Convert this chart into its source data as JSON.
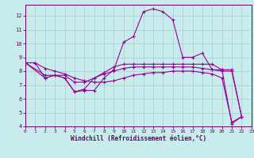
{
  "xlabel": "Windchill (Refroidissement éolien,°C)",
  "bg_color": "#c8ecec",
  "line_color": "#990099",
  "grid_color": "#aacccc",
  "text_color": "#660066",
  "xlim": [
    0,
    23
  ],
  "ylim": [
    4,
    12.8
  ],
  "xticks": [
    0,
    1,
    2,
    3,
    4,
    5,
    6,
    7,
    8,
    9,
    10,
    11,
    12,
    13,
    14,
    15,
    16,
    17,
    18,
    19,
    20,
    21,
    22,
    23
  ],
  "yticks": [
    4,
    5,
    6,
    7,
    8,
    9,
    10,
    11,
    12
  ],
  "curve1_x": [
    0,
    1,
    2,
    3,
    4,
    5,
    6,
    7,
    8,
    9,
    10,
    11,
    12,
    13,
    14,
    15,
    16,
    17,
    18,
    19,
    20,
    21,
    22
  ],
  "curve1_y": [
    8.6,
    8.6,
    7.5,
    7.7,
    7.5,
    6.5,
    6.6,
    6.6,
    7.5,
    8.1,
    10.1,
    10.5,
    12.3,
    12.5,
    12.3,
    11.7,
    9.0,
    9.0,
    9.3,
    8.1,
    8.1,
    4.2,
    4.7
  ],
  "curve2_x": [
    0,
    2,
    3,
    4,
    5,
    6,
    7,
    8,
    9,
    10,
    11,
    12,
    13,
    14,
    15,
    16,
    17,
    18,
    19,
    20,
    21,
    22
  ],
  "curve2_y": [
    8.6,
    7.5,
    7.7,
    7.5,
    6.5,
    6.7,
    7.5,
    7.9,
    8.3,
    8.5,
    8.5,
    8.5,
    8.5,
    8.5,
    8.5,
    8.5,
    8.5,
    8.5,
    8.5,
    8.1,
    8.1,
    4.7
  ],
  "curve3_x": [
    0,
    2,
    3,
    4,
    5,
    6,
    7,
    8,
    9,
    10,
    11,
    12,
    13,
    14,
    15,
    16,
    17,
    18,
    19,
    20,
    21,
    22
  ],
  "curve3_y": [
    8.6,
    7.7,
    7.7,
    7.7,
    7.2,
    7.2,
    7.5,
    7.8,
    8.0,
    8.2,
    8.3,
    8.3,
    8.3,
    8.3,
    8.3,
    8.3,
    8.3,
    8.2,
    8.1,
    8.0,
    8.0,
    4.7
  ],
  "curve4_x": [
    0,
    1,
    2,
    3,
    4,
    5,
    6,
    7,
    8,
    9,
    10,
    11,
    12,
    13,
    14,
    15,
    16,
    17,
    18,
    19,
    20,
    21,
    22
  ],
  "curve4_y": [
    8.6,
    8.6,
    8.2,
    8.0,
    7.8,
    7.5,
    7.3,
    7.2,
    7.2,
    7.3,
    7.5,
    7.7,
    7.8,
    7.9,
    7.9,
    8.0,
    8.0,
    8.0,
    7.9,
    7.8,
    7.5,
    4.3,
    4.7
  ]
}
